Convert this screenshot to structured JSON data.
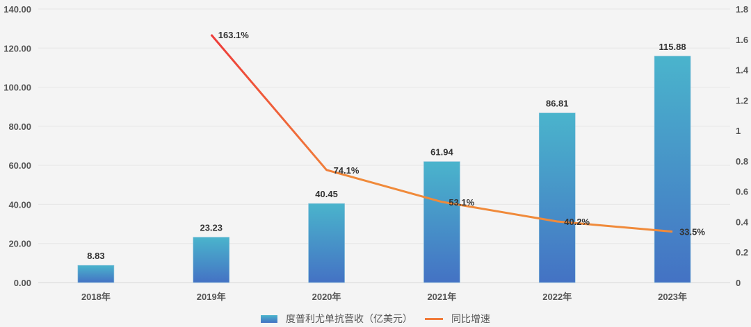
{
  "chart_data": {
    "type": "bar+line",
    "categories": [
      "2018年",
      "2019年",
      "2020年",
      "2021年",
      "2022年",
      "2023年"
    ],
    "series": [
      {
        "name": "度普利尤单抗营收（亿美元）",
        "type": "bar",
        "axis": "left",
        "values": [
          8.83,
          23.23,
          40.45,
          61.94,
          86.81,
          115.88
        ],
        "labels": [
          "8.83",
          "23.23",
          "40.45",
          "61.94",
          "86.81",
          "115.88"
        ]
      },
      {
        "name": "同比增速",
        "type": "line",
        "axis": "right",
        "values": [
          null,
          1.631,
          0.741,
          0.531,
          0.402,
          0.335
        ],
        "labels": [
          "",
          "163.1%",
          "74.1%",
          "53.1%",
          "40.2%",
          "33.5%"
        ]
      }
    ],
    "ylim_left": [
      0,
      140
    ],
    "yticks_left": [
      "0.00",
      "20.00",
      "40.00",
      "60.00",
      "80.00",
      "100.00",
      "120.00",
      "140.00"
    ],
    "ylim_right": [
      0,
      1.8
    ],
    "yticks_right": [
      "0",
      "0.2",
      "0.4",
      "0.6",
      "0.8",
      "1",
      "1.2",
      "1.4",
      "1.6",
      "1.8"
    ],
    "grid": true,
    "legend_placement": "bottom",
    "colors": {
      "bar_top": "#4ab4cc",
      "bar_bottom": "#4472c4",
      "line_start": "#ee3a3a",
      "line_end": "#f08a3a",
      "background": "#f4f4f4"
    }
  }
}
